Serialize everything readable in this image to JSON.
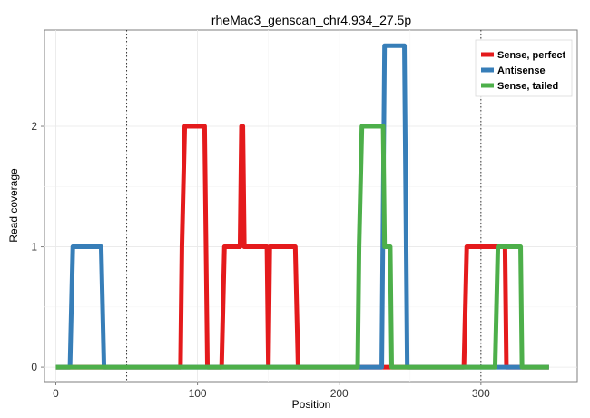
{
  "chart_data": {
    "type": "line",
    "title": "rheMac3_genscan_chr4.934_27.5p",
    "xlabel": "Position",
    "ylabel": "Read coverage",
    "xlim": [
      -8,
      368
    ],
    "ylim": [
      -0.12,
      2.8
    ],
    "x_ticks": [
      0,
      100,
      200,
      300
    ],
    "x_tick_labels": [
      "0",
      "100",
      "200",
      "300"
    ],
    "y_ticks": [
      0,
      1,
      2
    ],
    "y_tick_labels": [
      "0",
      "1",
      "2"
    ],
    "vlines": [
      50,
      300
    ],
    "grid": true,
    "legend_position": "top-right",
    "series": [
      {
        "name": "Sense, perfect",
        "color": "#e41a1c",
        "x": [
          0,
          88,
          89,
          91,
          105,
          107,
          117,
          119,
          130,
          131,
          132,
          133,
          135,
          149,
          150,
          151,
          152,
          169,
          171,
          288,
          290,
          317,
          318,
          319,
          348
        ],
        "y": [
          0,
          0,
          1,
          2,
          2,
          0,
          0,
          1,
          1,
          2,
          2,
          1,
          1,
          1,
          0,
          1,
          1,
          1,
          0,
          0,
          1,
          1,
          0,
          0,
          0
        ]
      },
      {
        "name": "Antisense",
        "color": "#377eb8",
        "x": [
          0,
          10,
          12,
          32,
          34,
          230,
          232,
          246,
          248,
          348
        ],
        "y": [
          0,
          0,
          1,
          1,
          0,
          0,
          2.67,
          2.67,
          0,
          0
        ]
      },
      {
        "name": "Sense, tailed",
        "color": "#4daf4a",
        "x": [
          0,
          213,
          214,
          216,
          231,
          232,
          233,
          236,
          237,
          310,
          312,
          328,
          329,
          348
        ],
        "y": [
          0,
          0,
          1,
          2,
          2,
          1,
          1,
          1,
          0,
          0,
          1,
          1,
          0,
          0
        ]
      }
    ]
  }
}
